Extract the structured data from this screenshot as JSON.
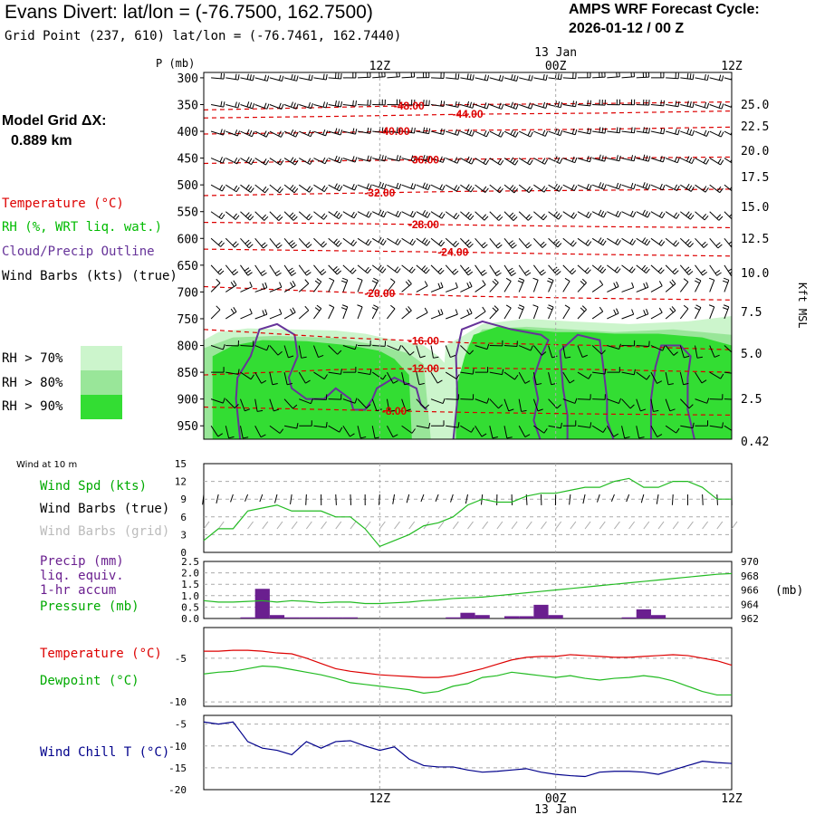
{
  "header": {
    "title": "Evans Divert:  lat/lon = (-76.7500, 162.7500)",
    "grid_point": "Grid Point (237, 610) lat/lon = (-76.7461, 162.7440)",
    "cycle_label": "AMPS WRF Forecast Cycle:",
    "cycle_value": "2026-01-12 / 00  Z"
  },
  "model_grid": {
    "label": "Model Grid ΔX:",
    "value": "0.889 km"
  },
  "legend": {
    "temperature": "Temperature (°C)",
    "rh": "RH (%, WRT liq. wat.)",
    "cloud": "Cloud/Precip Outline",
    "wind_barbs": "Wind Barbs (kts) (true)",
    "rh70": "RH > 70%",
    "rh80": "RH > 80%",
    "rh90": "RH > 90%"
  },
  "colors": {
    "temperature": "#dd0000",
    "rh": "#00bb00",
    "cloud": "#663399",
    "rh70": "#ccf5cc",
    "rh80": "#99e699",
    "rh90": "#33dd33",
    "precip": "#6a1f8f",
    "pressure": "#22bb22",
    "windchill": "#00008b",
    "grid_gray": "#aaaaaa"
  },
  "time_axis": {
    "top_labels": [
      "12Z",
      "00Z",
      "12Z"
    ],
    "date": "13 Jan",
    "bottom_labels": [
      "12Z",
      "00Z",
      "12Z"
    ]
  },
  "chart_data": [
    {
      "type": "line",
      "name": "time-height cross section",
      "title": "",
      "ylabel": "P (mb)",
      "ylabel_right": "Kft MSL",
      "y_ticks": [
        "300",
        "350",
        "400",
        "450",
        "500",
        "550",
        "600",
        "650",
        "700",
        "750",
        "800",
        "850",
        "900",
        "950"
      ],
      "right_ticks": [
        "25.0",
        "22.5",
        "20.0",
        "17.5",
        "15.0",
        "12.5",
        "10.0",
        "7.5",
        "5.0",
        "2.5",
        "0.42"
      ],
      "ylim": [
        975,
        290
      ],
      "xlim": [
        0,
        36
      ],
      "isotherms": [
        {
          "label": "-48.00",
          "value": -48
        },
        {
          "label": "-44.00",
          "value": -44
        },
        {
          "label": "-40.00",
          "value": -40
        },
        {
          "label": "-36.00",
          "value": -36
        },
        {
          "label": "-32.00",
          "value": -32
        },
        {
          "label": "-28.00",
          "value": -28
        },
        {
          "label": "-24.00",
          "value": -24
        },
        {
          "label": "-20.00",
          "value": -20
        },
        {
          "label": "-16.00",
          "value": -16
        },
        {
          "label": "-12.00",
          "value": -12
        },
        {
          "label": "-8.00",
          "value": -8
        }
      ],
      "rh_thresholds": [
        70,
        80,
        90
      ]
    },
    {
      "type": "line",
      "name": "wind at 10 m",
      "title": "Wind at 10 m",
      "series_labels": {
        "speed": "Wind Spd (kts)",
        "barbs_true": "Wind Barbs (true)",
        "barbs_grid": "Wind Barbs (grid)"
      },
      "y_ticks": [
        "0",
        "3",
        "6",
        "9",
        "12",
        "15"
      ],
      "ylim": [
        0,
        15
      ],
      "x": [
        0,
        1,
        2,
        3,
        4,
        5,
        6,
        7,
        8,
        9,
        10,
        11,
        12,
        13,
        14,
        15,
        16,
        17,
        18,
        19,
        20,
        21,
        22,
        23,
        24,
        25,
        26,
        27,
        28,
        29,
        30,
        31,
        32,
        33,
        34,
        35,
        36
      ],
      "wind_speed": [
        2,
        4,
        4,
        7,
        7.5,
        8,
        7,
        7,
        7,
        6,
        6,
        4,
        1,
        2,
        3,
        4.5,
        5,
        6,
        8,
        9,
        8.5,
        8.5,
        9.5,
        10,
        10,
        10.5,
        11,
        11,
        12,
        12.5,
        11,
        11,
        12,
        12,
        11,
        9,
        9
      ]
    },
    {
      "type": "bar",
      "name": "precip and pressure",
      "series_labels": {
        "precip": "Precip (mm)",
        "precip2": "liq. equiv.",
        "precip3": "1-hr accum",
        "pressure": "Pressure (mb)"
      },
      "y_ticks": [
        "0.0",
        "0.5",
        "1.0",
        "1.5",
        "2.0",
        "2.5"
      ],
      "ylim": [
        0,
        2.5
      ],
      "right_ticks": [
        "962",
        "964",
        "966",
        "968",
        "970"
      ],
      "right_ylim": [
        962,
        970
      ],
      "right_label": "(mb)",
      "x": [
        0,
        1,
        2,
        3,
        4,
        5,
        6,
        7,
        8,
        9,
        10,
        11,
        12,
        13,
        14,
        15,
        16,
        17,
        18,
        19,
        20,
        21,
        22,
        23,
        24,
        25,
        26,
        27,
        28,
        29,
        30,
        31,
        32,
        33,
        34,
        35,
        36
      ],
      "precip": [
        0,
        0,
        0,
        0.05,
        1.3,
        0.15,
        0.05,
        0.05,
        0.05,
        0.05,
        0.05,
        0,
        0,
        0,
        0,
        0,
        0,
        0.05,
        0.25,
        0.15,
        0,
        0.1,
        0.1,
        0.6,
        0.15,
        0,
        0,
        0,
        0,
        0.05,
        0.4,
        0.15,
        0,
        0,
        0,
        0,
        0
      ],
      "pressure": [
        964.5,
        964.3,
        964.3,
        964.4,
        964.5,
        964.3,
        964.5,
        964.4,
        964.2,
        964.3,
        964.3,
        964.1,
        964.1,
        964.2,
        964.3,
        964.5,
        964.6,
        964.8,
        964.9,
        965,
        965.2,
        965.4,
        965.6,
        965.8,
        966,
        966.2,
        966.4,
        966.6,
        966.8,
        967,
        967.2,
        967.4,
        967.6,
        967.8,
        968,
        968.2,
        968.3
      ]
    },
    {
      "type": "line",
      "name": "temperature and dewpoint",
      "series_labels": {
        "temperature": "Temperature (°C)",
        "dewpoint": "Dewpoint (°C)"
      },
      "y_ticks": [
        "-5",
        "-10"
      ],
      "ylim": [
        -10.5,
        -1.5
      ],
      "x": [
        0,
        1,
        2,
        3,
        4,
        5,
        6,
        7,
        8,
        9,
        10,
        11,
        12,
        13,
        14,
        15,
        16,
        17,
        18,
        19,
        20,
        21,
        22,
        23,
        24,
        25,
        26,
        27,
        28,
        29,
        30,
        31,
        32,
        33,
        34,
        35,
        36
      ],
      "temperature": [
        -4.2,
        -4.2,
        -4.1,
        -4.1,
        -4.2,
        -4.4,
        -4.5,
        -5,
        -5.6,
        -6.2,
        -6.5,
        -6.7,
        -6.9,
        -7,
        -7.1,
        -7.2,
        -7.2,
        -7,
        -6.6,
        -6.2,
        -5.7,
        -5.2,
        -4.9,
        -4.8,
        -4.8,
        -4.6,
        -4.7,
        -4.8,
        -4.9,
        -4.9,
        -4.8,
        -4.7,
        -4.6,
        -4.7,
        -5,
        -5.3,
        -5.8
      ],
      "dewpoint": [
        -6.8,
        -6.6,
        -6.5,
        -6.2,
        -5.9,
        -6,
        -6.3,
        -6.6,
        -6.9,
        -7.3,
        -7.8,
        -8,
        -8.2,
        -8.4,
        -8.6,
        -9,
        -8.8,
        -8.2,
        -7.9,
        -7.2,
        -7,
        -6.6,
        -6.8,
        -7,
        -7.2,
        -7,
        -7.3,
        -7.5,
        -7.3,
        -7.2,
        -7,
        -7.2,
        -7.6,
        -8.2,
        -8.8,
        -9.2,
        -9.2
      ]
    },
    {
      "type": "line",
      "name": "wind chill",
      "series_labels": {
        "windchill": "Wind Chill T (°C)"
      },
      "y_ticks": [
        "-5",
        "-10",
        "-15",
        "-20"
      ],
      "ylim": [
        -20,
        -3
      ],
      "x": [
        0,
        1,
        2,
        3,
        4,
        5,
        6,
        7,
        8,
        9,
        10,
        11,
        12,
        13,
        14,
        15,
        16,
        17,
        18,
        19,
        20,
        21,
        22,
        23,
        24,
        25,
        26,
        27,
        28,
        29,
        30,
        31,
        32,
        33,
        34,
        35,
        36
      ],
      "windchill": [
        -4.5,
        -5,
        -4.5,
        -9,
        -10.5,
        -11,
        -12,
        -9,
        -10.5,
        -9,
        -8.8,
        -10,
        -11,
        -10.2,
        -13,
        -14.5,
        -14.8,
        -14.8,
        -15.5,
        -16,
        -15.8,
        -15.5,
        -15.2,
        -16,
        -16.5,
        -16.8,
        -17,
        -16,
        -15.8,
        -15.8,
        -16,
        -16.5,
        -15.5,
        -14.5,
        -13.5,
        -13.8,
        -14
      ]
    }
  ]
}
